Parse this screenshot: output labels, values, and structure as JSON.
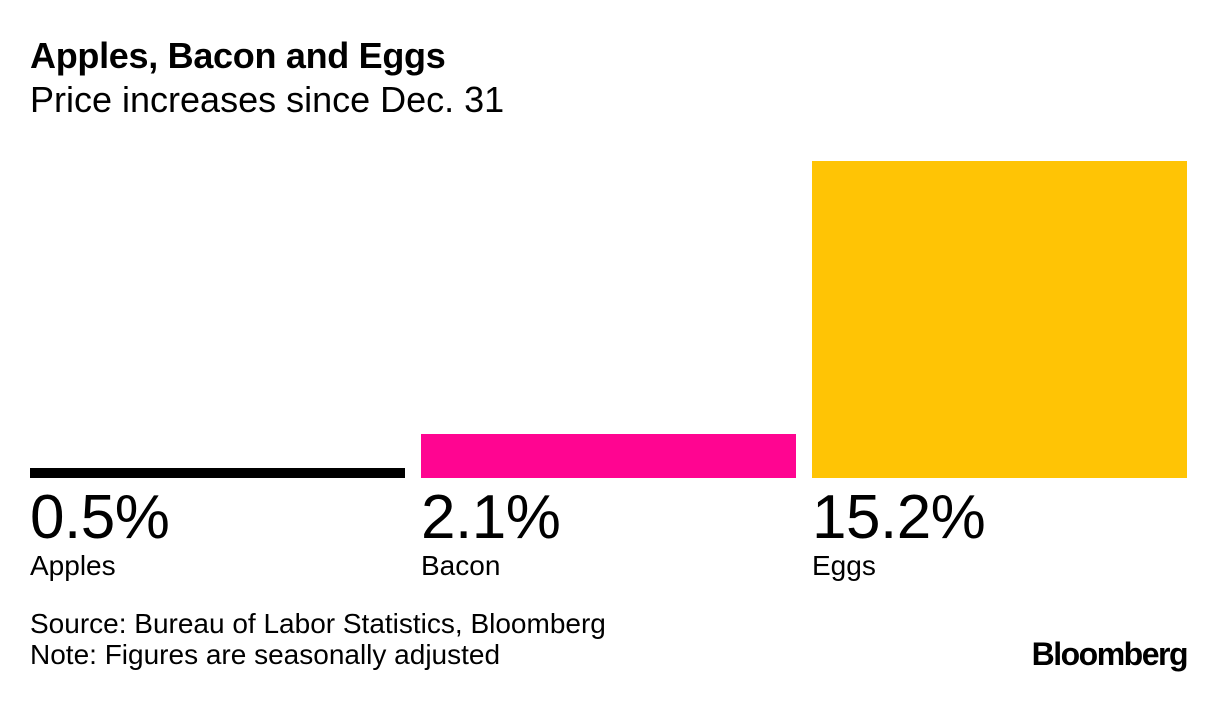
{
  "header": {
    "title": "Apples, Bacon and Eggs",
    "subtitle": "Price increases since Dec. 31"
  },
  "chart_data": {
    "type": "bar",
    "title": "Apples, Bacon and Eggs",
    "subtitle": "Price increases since Dec. 31",
    "orientation": "vertical",
    "categories": [
      "Apples",
      "Bacon",
      "Eggs"
    ],
    "values": [
      0.5,
      2.1,
      15.2
    ],
    "value_labels": [
      "0.5%",
      "2.1%",
      "15.2%"
    ],
    "unit": "percent",
    "bar_colors": [
      "#000000",
      "#FF0591",
      "#FFC405"
    ],
    "ylim": [
      0,
      15.2
    ],
    "grid": false,
    "legend_position": "none",
    "axis_labels_shown": false,
    "value_label_position": "below-bar"
  },
  "footer": {
    "source": "Source: Bureau of Labor Statistics, Bloomberg",
    "note": "Note: Figures are seasonally adjusted",
    "brand": "Bloomberg"
  }
}
